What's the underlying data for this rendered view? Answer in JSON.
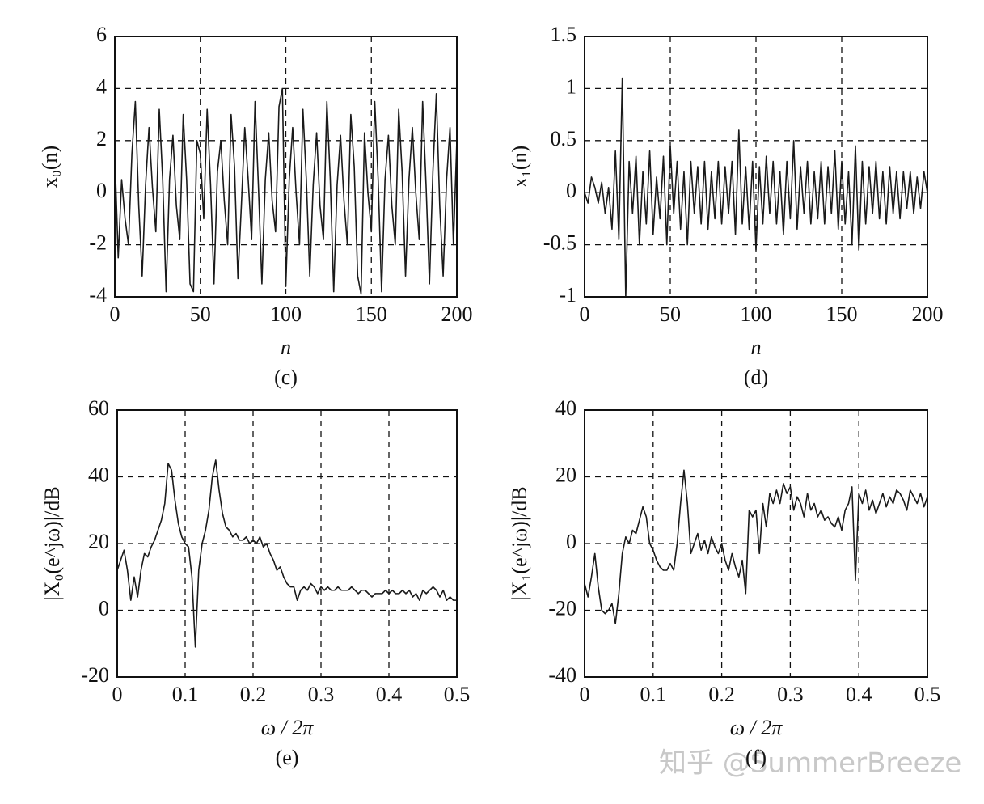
{
  "chart_data": [
    {
      "type": "line",
      "caption": "(c)",
      "xlabel": "n",
      "ylabel": "x₀(n)",
      "color": "#1a1a1a",
      "grid": true,
      "xlim": [
        0,
        200
      ],
      "xticks": [
        0,
        50,
        100,
        150,
        200
      ],
      "ylim": [
        -4,
        6
      ],
      "yticks": [
        -4,
        -2,
        0,
        2,
        4,
        6
      ],
      "x": [
        0,
        2,
        4,
        6,
        8,
        10,
        12,
        14,
        16,
        18,
        20,
        22,
        24,
        26,
        28,
        30,
        32,
        34,
        36,
        38,
        40,
        42,
        44,
        46,
        48,
        50,
        52,
        54,
        56,
        58,
        60,
        62,
        64,
        66,
        68,
        70,
        72,
        74,
        76,
        78,
        80,
        82,
        84,
        86,
        88,
        90,
        92,
        94,
        96,
        98,
        100,
        102,
        104,
        106,
        108,
        110,
        112,
        114,
        116,
        118,
        120,
        122,
        124,
        126,
        128,
        130,
        132,
        134,
        136,
        138,
        140,
        142,
        144,
        146,
        148,
        150,
        152,
        154,
        156,
        158,
        160,
        162,
        164,
        166,
        168,
        170,
        172,
        174,
        176,
        178,
        180,
        182,
        184,
        186,
        188,
        190,
        192,
        194,
        196,
        198,
        200
      ],
      "values": [
        1.5,
        -2.5,
        0.5,
        -1,
        -2,
        1.5,
        3.5,
        -0.5,
        -3.2,
        0.3,
        2.5,
        0.2,
        -1.5,
        3.2,
        0.5,
        -3.8,
        0.5,
        2.2,
        -0.5,
        -1.8,
        3.0,
        0.5,
        -3.5,
        -3.8,
        2,
        1.5,
        -1,
        3.2,
        0.3,
        -3.5,
        0.8,
        2,
        -0.3,
        -2,
        3,
        1,
        -3.3,
        -0.5,
        2.5,
        0.5,
        -1.8,
        3.5,
        0.2,
        -3.5,
        0.5,
        2.3,
        -0.3,
        -1.5,
        3.3,
        4.0,
        -3.6,
        0.5,
        2.5,
        0,
        -2,
        3.2,
        0.5,
        -3.2,
        0.3,
        2.3,
        -0.5,
        -1.8,
        3.5,
        0.5,
        -3.8,
        0.3,
        2.2,
        -0.3,
        -2,
        3,
        1,
        -3.2,
        -3.9,
        2.3,
        0,
        -1.5,
        3.5,
        0.5,
        -3.8,
        0.5,
        2.2,
        -0.5,
        -2,
        3.2,
        0.8,
        -3.2,
        0.5,
        2.5,
        0,
        -1.8,
        3.5,
        0.3,
        -3.5,
        0.8,
        3.8,
        -0.5,
        -3.2,
        0.5,
        2.5,
        -2,
        2
      ]
    },
    {
      "type": "line",
      "caption": "(d)",
      "xlabel": "n",
      "ylabel": "x₁(n)",
      "color": "#1a1a1a",
      "grid": true,
      "xlim": [
        0,
        200
      ],
      "xticks": [
        0,
        50,
        100,
        150,
        200
      ],
      "ylim": [
        -1,
        1.5
      ],
      "yticks": [
        -1,
        -0.5,
        0,
        0.5,
        1,
        1.5
      ],
      "x": [
        0,
        2,
        4,
        6,
        8,
        10,
        12,
        14,
        16,
        18,
        20,
        22,
        24,
        26,
        28,
        30,
        32,
        34,
        36,
        38,
        40,
        42,
        44,
        46,
        48,
        50,
        52,
        54,
        56,
        58,
        60,
        62,
        64,
        66,
        68,
        70,
        72,
        74,
        76,
        78,
        80,
        82,
        84,
        86,
        88,
        90,
        92,
        94,
        96,
        98,
        100,
        102,
        104,
        106,
        108,
        110,
        112,
        114,
        116,
        118,
        120,
        122,
        124,
        126,
        128,
        130,
        132,
        134,
        136,
        138,
        140,
        142,
        144,
        146,
        148,
        150,
        152,
        154,
        156,
        158,
        160,
        162,
        164,
        166,
        168,
        170,
        172,
        174,
        176,
        178,
        180,
        182,
        184,
        186,
        188,
        190,
        192,
        194,
        196,
        198,
        200
      ],
      "values": [
        0,
        -0.1,
        0.15,
        0.05,
        -0.1,
        0.1,
        -0.2,
        0.05,
        -0.35,
        0.4,
        -0.45,
        1.1,
        -1.0,
        0.3,
        -0.2,
        0.35,
        -0.5,
        0.2,
        -0.3,
        0.4,
        -0.4,
        0.15,
        -0.25,
        0.35,
        -0.5,
        0.45,
        -0.2,
        0.3,
        -0.35,
        0.2,
        -0.5,
        0.3,
        -0.2,
        0.25,
        -0.3,
        0.3,
        -0.35,
        0.2,
        -0.25,
        0.3,
        -0.3,
        0.25,
        -0.2,
        0.3,
        -0.4,
        0.6,
        -0.3,
        0.25,
        -0.35,
        0.3,
        -0.55,
        0.25,
        -0.3,
        0.35,
        -0.2,
        0.3,
        -0.3,
        0.2,
        -0.4,
        0.3,
        -0.25,
        0.5,
        -0.35,
        0.25,
        -0.2,
        0.3,
        -0.3,
        0.2,
        -0.25,
        0.3,
        -0.3,
        0.25,
        -0.2,
        0.4,
        -0.35,
        0.3,
        -0.3,
        0.2,
        -0.5,
        0.45,
        -0.55,
        0.3,
        -0.3,
        0.25,
        -0.2,
        0.3,
        -0.25,
        0.2,
        -0.3,
        0.25,
        -0.2,
        0.2,
        -0.25,
        0.2,
        -0.15,
        0.2,
        -0.2,
        0.15,
        -0.15,
        0.2,
        0
      ]
    },
    {
      "type": "line",
      "caption": "(e)",
      "xlabel": "ω / 2π",
      "ylabel": "|X₀(e^jω)|/dB",
      "color": "#1a1a1a",
      "grid": true,
      "xlim": [
        0,
        0.5
      ],
      "xticks": [
        0,
        0.1,
        0.2,
        0.3,
        0.4,
        0.5
      ],
      "ylim": [
        -20,
        60
      ],
      "yticks": [
        -20,
        0,
        20,
        40,
        60
      ],
      "x": [
        0,
        0.005,
        0.01,
        0.015,
        0.02,
        0.025,
        0.03,
        0.035,
        0.04,
        0.045,
        0.05,
        0.055,
        0.06,
        0.065,
        0.07,
        0.075,
        0.08,
        0.085,
        0.09,
        0.095,
        0.1,
        0.105,
        0.11,
        0.115,
        0.12,
        0.125,
        0.13,
        0.135,
        0.14,
        0.145,
        0.15,
        0.155,
        0.16,
        0.165,
        0.17,
        0.175,
        0.18,
        0.185,
        0.19,
        0.195,
        0.2,
        0.205,
        0.21,
        0.215,
        0.22,
        0.225,
        0.23,
        0.235,
        0.24,
        0.245,
        0.25,
        0.255,
        0.26,
        0.265,
        0.27,
        0.275,
        0.28,
        0.285,
        0.29,
        0.295,
        0.3,
        0.305,
        0.31,
        0.315,
        0.32,
        0.325,
        0.33,
        0.335,
        0.34,
        0.345,
        0.35,
        0.355,
        0.36,
        0.365,
        0.37,
        0.375,
        0.38,
        0.385,
        0.39,
        0.395,
        0.4,
        0.405,
        0.41,
        0.415,
        0.42,
        0.425,
        0.43,
        0.435,
        0.44,
        0.445,
        0.45,
        0.455,
        0.46,
        0.465,
        0.47,
        0.475,
        0.48,
        0.485,
        0.49,
        0.495,
        0.5
      ],
      "values": [
        12,
        15,
        18,
        12,
        3,
        10,
        4,
        12,
        17,
        16,
        19,
        21,
        24,
        27,
        32,
        44,
        42,
        33,
        26,
        22,
        20,
        19,
        10,
        -11,
        12,
        20,
        24,
        30,
        40,
        45,
        36,
        29,
        25,
        24,
        22,
        23,
        21,
        21,
        22,
        20,
        21,
        20,
        22,
        19,
        20,
        17,
        15,
        12,
        13,
        10,
        8,
        7,
        7,
        3,
        6,
        7,
        6,
        8,
        7,
        5,
        7,
        6,
        7,
        6,
        6,
        7,
        6,
        6,
        6,
        7,
        6,
        5,
        6,
        6,
        5,
        4,
        5,
        5,
        5,
        6,
        5,
        6,
        5,
        5,
        6,
        5,
        6,
        4,
        5,
        3,
        6,
        5,
        6,
        7,
        6,
        4,
        6,
        3,
        4,
        3,
        3
      ]
    },
    {
      "type": "line",
      "caption": "(f)",
      "xlabel": "ω / 2π",
      "ylabel": "|X₁(e^jω)|/dB",
      "color": "#1a1a1a",
      "grid": true,
      "xlim": [
        0,
        0.5
      ],
      "xticks": [
        0,
        0.1,
        0.2,
        0.3,
        0.4,
        0.5
      ],
      "ylim": [
        -40,
        40
      ],
      "yticks": [
        -40,
        -20,
        0,
        20,
        40
      ],
      "x": [
        0,
        0.005,
        0.01,
        0.015,
        0.02,
        0.025,
        0.03,
        0.035,
        0.04,
        0.045,
        0.05,
        0.055,
        0.06,
        0.065,
        0.07,
        0.075,
        0.08,
        0.085,
        0.09,
        0.095,
        0.1,
        0.105,
        0.11,
        0.115,
        0.12,
        0.125,
        0.13,
        0.135,
        0.14,
        0.145,
        0.15,
        0.155,
        0.16,
        0.165,
        0.17,
        0.175,
        0.18,
        0.185,
        0.19,
        0.195,
        0.2,
        0.205,
        0.21,
        0.215,
        0.22,
        0.225,
        0.23,
        0.235,
        0.24,
        0.245,
        0.25,
        0.255,
        0.26,
        0.265,
        0.27,
        0.275,
        0.28,
        0.285,
        0.29,
        0.295,
        0.3,
        0.305,
        0.31,
        0.315,
        0.32,
        0.325,
        0.33,
        0.335,
        0.34,
        0.345,
        0.35,
        0.355,
        0.36,
        0.365,
        0.37,
        0.375,
        0.38,
        0.385,
        0.39,
        0.395,
        0.4,
        0.405,
        0.41,
        0.415,
        0.42,
        0.425,
        0.43,
        0.435,
        0.44,
        0.445,
        0.45,
        0.455,
        0.46,
        0.465,
        0.47,
        0.475,
        0.48,
        0.485,
        0.49,
        0.495,
        0.5
      ],
      "values": [
        -12,
        -16,
        -10,
        -3,
        -13,
        -20,
        -21,
        -20,
        -18,
        -24,
        -15,
        -3,
        2,
        0,
        4,
        3,
        7,
        11,
        8,
        0,
        -2,
        -5,
        -7,
        -8,
        -8,
        -6,
        -8,
        0,
        12,
        22,
        12,
        -3,
        0,
        3,
        -2,
        1,
        -3,
        2,
        -1,
        -3,
        0,
        -5,
        -8,
        -3,
        -7,
        -10,
        -5,
        -15,
        10,
        8,
        10,
        -3,
        12,
        5,
        15,
        12,
        16,
        12,
        18,
        15,
        17,
        10,
        14,
        12,
        8,
        15,
        10,
        12,
        8,
        10,
        7,
        8,
        6,
        5,
        8,
        4,
        10,
        12,
        17,
        -11,
        15,
        12,
        16,
        10,
        13,
        9,
        12,
        15,
        11,
        14,
        12,
        16,
        15,
        13,
        10,
        16,
        14,
        12,
        15,
        11,
        14
      ]
    }
  ],
  "watermark": "知乎 @SummerBreeze"
}
